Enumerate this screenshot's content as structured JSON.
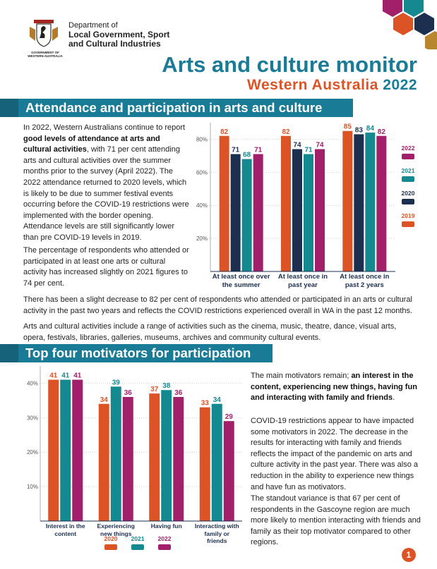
{
  "document": {
    "header": {
      "dept_line1": "Department of",
      "dept_line2": "Local Government, Sport",
      "dept_line3": "and Cultural Industries",
      "gov": "GOVERNMENT OF WESTERN AUSTRALIA"
    },
    "title": "Arts and culture monitor",
    "subtitle": "Western Australia",
    "subtitle_year": "2022",
    "section1": {
      "heading": "Attendance and participation in arts and culture",
      "para1": [
        "In 2022, Western Australians continue to report ",
        "good levels of attendance at arts and cultural activities",
        ", with 71 per cent attending arts and cultural activities over the summer months prior to the survey (April 2022). The 2022 attendance returned to 2020 levels, which is likely to be due to summer festival events occurring before the COVID-19 restrictions were implemented with the border opening. Attendance levels are still significantly lower than pre COVID-19 levels in 2019."
      ],
      "para2": "The percentage of respondents who attended or participated in at least one arts or cultural activity has increased slightly on 2021 figures to 74 per cent.",
      "para3": "There has been a slight decrease to 82 per cent of respondents who attended or participated in an arts or cultural activity in the past two years and reflects the COVID restrictions experienced overall in WA in the past 12 months.",
      "para4": "Arts and cultural activities include a range of activities such as the cinema, music, theatre, dance, visual arts, opera, festivals, libraries, galleries, museums, archives and community cultural events."
    },
    "section2": {
      "heading": "Top four motivators for participation",
      "para1": [
        "The main motivators remain; ",
        "an interest in the content, experiencing new things, having fun and interacting with family and friends",
        "."
      ],
      "para2": "COVID-19 restrictions appear to have impacted some motivators in 2022. The decrease in the results for interacting with family and friends reflects the impact of the pandemic on arts and culture activity in the past year. There was also a reduction in the ability to experience new things and have fun as motivators.",
      "para3": "The standout variance is that 67 per cent of respondents in the Gascoyne region are much more likely to mention interacting with friends and family as their top motivator compared to other regions."
    },
    "page_number": "1"
  },
  "chart_data": [
    {
      "type": "bar",
      "legend": "right",
      "categories": [
        "At least once over the summer",
        "At least once in past year",
        "At least once in past 2 years"
      ],
      "series": [
        {
          "name": "2019",
          "color": "#dc5426",
          "values": [
            82,
            82,
            85
          ]
        },
        {
          "name": "2020",
          "color": "#1c2f4f",
          "values": [
            71,
            74,
            83
          ]
        },
        {
          "name": "2021",
          "color": "#14898f",
          "values": [
            68,
            71,
            84
          ]
        },
        {
          "name": "2022",
          "color": "#a2206a",
          "values": [
            71,
            74,
            82
          ]
        }
      ],
      "ylim": [
        0,
        90
      ],
      "yticks": [
        {
          "value": 20,
          "label": "20%"
        },
        {
          "value": 40,
          "label": "40%"
        },
        {
          "value": 60,
          "label": "60%"
        },
        {
          "value": 80,
          "label": "80%"
        }
      ],
      "grid": true
    },
    {
      "type": "bar",
      "legend": "bottom",
      "categories": [
        "Interest in the content",
        "Experiencing new things",
        "Having fun",
        "Interacting with family or friends"
      ],
      "series": [
        {
          "name": "2020",
          "color": "#dc5426",
          "values": [
            41,
            34,
            37,
            33
          ]
        },
        {
          "name": "2021",
          "color": "#14898f",
          "values": [
            41,
            39,
            38,
            34
          ]
        },
        {
          "name": "2022",
          "color": "#a2206a",
          "values": [
            41,
            36,
            36,
            29
          ]
        }
      ],
      "ylim": [
        0,
        45
      ],
      "yticks": [
        {
          "value": 10,
          "label": "10%"
        },
        {
          "value": 20,
          "label": "20%"
        },
        {
          "value": 30,
          "label": "30%"
        },
        {
          "value": 40,
          "label": "40%"
        }
      ],
      "grid": true
    }
  ]
}
